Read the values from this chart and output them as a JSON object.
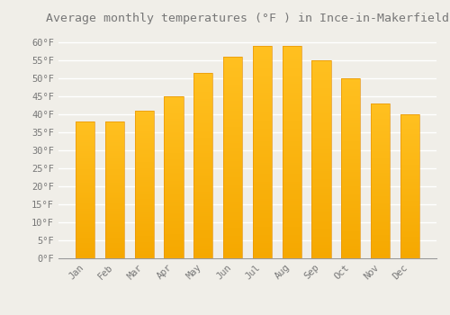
{
  "title": "Average monthly temperatures (°F ) in Ince-in-Makerfield",
  "months": [
    "Jan",
    "Feb",
    "Mar",
    "Apr",
    "May",
    "Jun",
    "Jul",
    "Aug",
    "Sep",
    "Oct",
    "Nov",
    "Dec"
  ],
  "values": [
    38,
    38,
    41,
    45,
    51.5,
    56,
    59,
    59,
    55,
    50,
    43,
    40
  ],
  "bar_color_top": "#FFC020",
  "bar_color_bottom": "#F5A800",
  "bar_edge_color": "#E8960A",
  "background_color": "#F0EEE8",
  "grid_color": "#FFFFFF",
  "text_color": "#777777",
  "ylim": [
    0,
    63
  ],
  "yticks": [
    0,
    5,
    10,
    15,
    20,
    25,
    30,
    35,
    40,
    45,
    50,
    55,
    60
  ],
  "title_fontsize": 9.5,
  "tick_fontsize": 7.5
}
